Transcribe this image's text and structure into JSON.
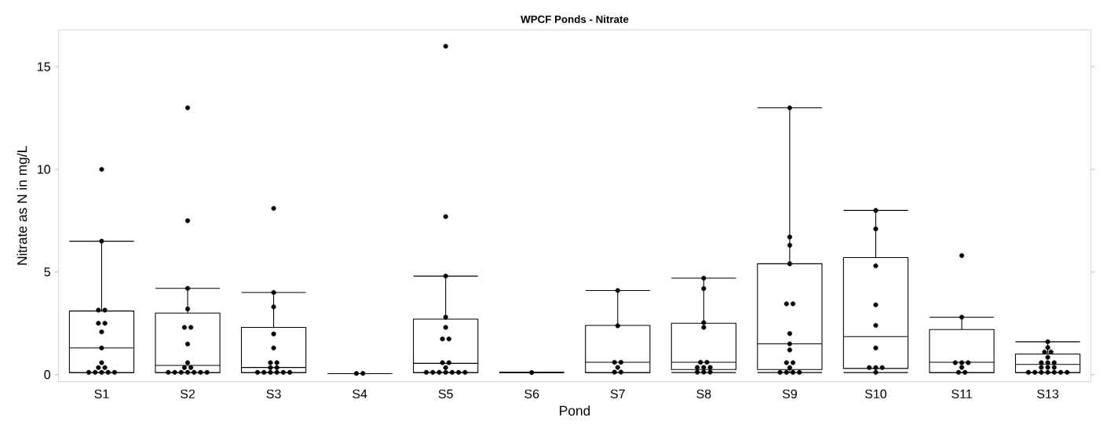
{
  "chart_data": {
    "type": "box",
    "title": "WPCF Ponds - Nitrate",
    "xlabel": "Pond",
    "ylabel": "Nitrate as N in mg/L",
    "categories": [
      "S1",
      "S2",
      "S3",
      "S4",
      "S5",
      "S6",
      "S7",
      "S8",
      "S9",
      "S10",
      "S11",
      "S13"
    ],
    "boxes": [
      {
        "low": 0.1,
        "q1": 0.1,
        "median": 1.3,
        "q3": 3.1,
        "high": 6.5
      },
      {
        "low": 0.1,
        "q1": 0.1,
        "median": 0.45,
        "q3": 3.0,
        "high": 4.2
      },
      {
        "low": 0.1,
        "q1": 0.1,
        "median": 0.35,
        "q3": 2.3,
        "high": 4.0
      },
      {
        "low": 0.05,
        "q1": 0.05,
        "median": 0.05,
        "q3": 0.05,
        "high": 0.05
      },
      {
        "low": 0.1,
        "q1": 0.1,
        "median": 0.55,
        "q3": 2.7,
        "high": 4.8
      },
      {
        "low": 0.1,
        "q1": 0.1,
        "median": 0.1,
        "q3": 0.1,
        "high": 0.1
      },
      {
        "low": 0.1,
        "q1": 0.1,
        "median": 0.6,
        "q3": 2.4,
        "high": 4.1
      },
      {
        "low": 0.1,
        "q1": 0.25,
        "median": 0.6,
        "q3": 2.5,
        "high": 4.7
      },
      {
        "low": 0.1,
        "q1": 0.25,
        "median": 1.5,
        "q3": 5.4,
        "high": 13.0
      },
      {
        "low": 0.1,
        "q1": 0.3,
        "median": 1.85,
        "q3": 5.7,
        "high": 8.0
      },
      {
        "low": 0.1,
        "q1": 0.1,
        "median": 0.6,
        "q3": 2.2,
        "high": 2.8
      },
      {
        "low": 0.1,
        "q1": 0.1,
        "median": 0.5,
        "q3": 1.0,
        "high": 1.6
      }
    ],
    "color": "#000000",
    "series": [
      {
        "type": "scatter",
        "color": "#000000",
        "x": [
          "S1",
          "S1",
          "S1",
          "S1",
          "S1",
          "S1",
          "S1",
          "S1",
          "S1",
          "S1",
          "S1",
          "S1",
          "S1",
          "S1",
          "S1",
          "S1",
          "S2",
          "S2",
          "S2",
          "S2",
          "S2",
          "S2",
          "S2",
          "S2",
          "S2",
          "S2",
          "S2",
          "S2",
          "S2",
          "S2",
          "S2",
          "S2",
          "S2",
          "S3",
          "S3",
          "S3",
          "S3",
          "S3",
          "S3",
          "S3",
          "S3",
          "S3",
          "S3",
          "S3",
          "S3",
          "S3",
          "S3",
          "S3",
          "S4",
          "S4",
          "S5",
          "S5",
          "S5",
          "S5",
          "S5",
          "S5",
          "S5",
          "S5",
          "S5",
          "S5",
          "S5",
          "S5",
          "S5",
          "S5",
          "S5",
          "S5",
          "S5",
          "S6",
          "S7",
          "S7",
          "S7",
          "S7",
          "S7",
          "S7",
          "S7",
          "S8",
          "S8",
          "S8",
          "S8",
          "S8",
          "S8",
          "S8",
          "S8",
          "S8",
          "S8",
          "S8",
          "S8",
          "S9",
          "S9",
          "S9",
          "S9",
          "S9",
          "S9",
          "S9",
          "S9",
          "S9",
          "S9",
          "S9",
          "S9",
          "S9",
          "S9",
          "S9",
          "S9",
          "S10",
          "S10",
          "S10",
          "S10",
          "S10",
          "S10",
          "S10",
          "S10",
          "S10",
          "S10",
          "S11",
          "S11",
          "S11",
          "S11",
          "S11",
          "S11",
          "S11",
          "S11",
          "S13",
          "S13",
          "S13",
          "S13",
          "S13",
          "S13",
          "S13",
          "S13",
          "S13",
          "S13",
          "S13",
          "S13",
          "S13",
          "S13",
          "S13",
          "S13",
          "S13",
          "S13"
        ],
        "values": [
          10.0,
          6.5,
          3.14,
          3.14,
          2.5,
          2.5,
          2.08,
          1.3,
          0.58,
          0.34,
          0.34,
          0.11,
          0.11,
          0.11,
          0.11,
          0.11,
          13.0,
          7.5,
          4.2,
          3.2,
          2.3,
          2.3,
          1.49,
          0.58,
          0.34,
          0.34,
          0.11,
          0.11,
          0.11,
          0.11,
          0.11,
          0.11,
          0.11,
          8.1,
          4.0,
          3.3,
          1.98,
          1.3,
          0.58,
          0.58,
          0.34,
          0.34,
          0.11,
          0.11,
          0.11,
          0.11,
          0.11,
          0.11,
          0.06,
          0.06,
          16.0,
          7.7,
          4.8,
          2.8,
          2.3,
          1.74,
          1.74,
          0.58,
          0.58,
          0.34,
          0.11,
          0.11,
          0.11,
          0.11,
          0.11,
          0.11,
          0.11,
          0.1,
          4.1,
          2.38,
          0.6,
          0.6,
          0.35,
          0.12,
          0.12,
          4.7,
          4.19,
          2.53,
          2.3,
          0.6,
          0.6,
          0.35,
          0.35,
          0.35,
          0.12,
          0.12,
          0.12,
          13.0,
          6.7,
          6.3,
          5.4,
          3.45,
          3.45,
          2.0,
          1.5,
          1.2,
          0.58,
          0.58,
          0.34,
          0.11,
          0.11,
          0.11,
          0.11,
          8.0,
          7.1,
          5.3,
          3.4,
          2.4,
          1.3,
          0.34,
          0.34,
          0.34,
          0.11,
          5.8,
          2.8,
          0.58,
          0.58,
          0.58,
          0.35,
          0.11,
          0.11,
          1.6,
          1.32,
          1.1,
          1.1,
          0.84,
          0.58,
          0.58,
          0.58,
          0.35,
          0.35,
          0.35,
          0.11,
          0.11,
          0.11,
          0.11,
          0.11,
          0.11,
          0.11
        ]
      }
    ],
    "ylim": [
      -0.34,
      16.8
    ],
    "yticks": [
      0,
      5,
      10,
      15
    ],
    "grid": false
  }
}
